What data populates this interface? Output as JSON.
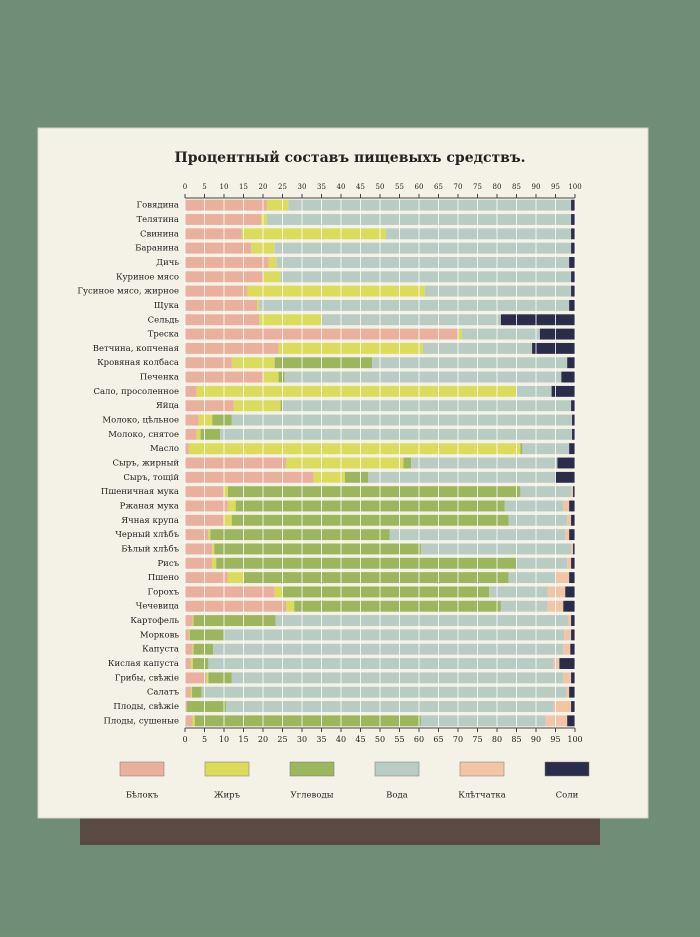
{
  "chart_data": {
    "type": "stacked-barh",
    "title": "Процентный составъ пищевыхъ средствъ.",
    "categories": [
      "Говядина",
      "Телятина",
      "Свинина",
      "Баранина",
      "Дичь",
      "Куриное мясо",
      "Гусиное мясо, жирное",
      "Щука",
      "Сельдь",
      "Треска",
      "Ветчина, копченая",
      "Кровяная колбаса",
      "Печенка",
      "Сало, просоленное",
      "Яйца",
      "Молоко, цѣльное",
      "Молоко, снятое",
      "Масло",
      "Сыръ, жирный",
      "Сыръ, тощій",
      "Пшеничная мука",
      "Ржаная мука",
      "Ячная крупа",
      "Черный хлѣбъ",
      "Бѣлый хлѣбъ",
      "Рисъ",
      "Пшено",
      "Горохъ",
      "Чечевица",
      "Картофель",
      "Морковь",
      "Капуста",
      "Кислая капуста",
      "Грибы, свѣжіе",
      "Салатъ",
      "Плоды, свѣжіе",
      "Плоды, сушеные"
    ],
    "series": [
      {
        "name": "Бѣлокъ",
        "color": "#e9b09e",
        "values": [
          21,
          19.5,
          14.5,
          17,
          21.5,
          20,
          16,
          18.5,
          19,
          70,
          24,
          12,
          20,
          3,
          12.5,
          3.5,
          3,
          1,
          26,
          33,
          10,
          11,
          10,
          6,
          7,
          7,
          11,
          23,
          26,
          2,
          1,
          2,
          1.5,
          5.5,
          1.5,
          0.5,
          2
        ]
      },
      {
        "name": "Жиръ",
        "color": "#dcdc5c",
        "values": [
          5.5,
          1.5,
          37,
          6,
          2,
          4.5,
          45.5,
          0.5,
          16,
          1,
          37,
          11,
          4,
          82,
          12,
          3.5,
          1,
          85,
          30,
          8,
          1,
          2,
          2,
          0.5,
          0.5,
          1,
          4,
          2,
          2,
          0.2,
          0.2,
          0.2,
          0.5,
          0.5,
          0.3,
          0,
          0.5
        ]
      },
      {
        "name": "Углеводы",
        "color": "#9cb65e",
        "values": [
          0,
          0,
          0,
          0,
          0,
          0,
          0,
          0,
          0,
          0,
          0,
          25,
          1.5,
          0,
          0.5,
          5,
          5,
          0.5,
          2,
          6,
          75,
          69,
          71,
          46,
          53,
          77,
          68,
          53,
          53,
          21,
          9,
          5,
          4,
          6,
          2.5,
          10,
          58
        ]
      },
      {
        "name": "Вода",
        "color": "#b9ccc4",
        "values": [
          72.5,
          78,
          47.5,
          76,
          75,
          74.5,
          37.5,
          79.5,
          46,
          20,
          28,
          50,
          71,
          9,
          74,
          87.25,
          90.25,
          12,
          37.5,
          48,
          13,
          15,
          15,
          45,
          38.5,
          13,
          12,
          15,
          12,
          75,
          87,
          89.8,
          88.5,
          85,
          93.5,
          84,
          32
        ]
      },
      {
        "name": "Клѣтчатка",
        "color": "#f1c6a6",
        "values": [
          0,
          0,
          0,
          0,
          0,
          0,
          0,
          0,
          0,
          0,
          0,
          0,
          0,
          0,
          0,
          0,
          0,
          0,
          0,
          0,
          0.5,
          1.5,
          1,
          1,
          0.5,
          1,
          3.5,
          4.5,
          4,
          0.8,
          1.8,
          1.8,
          1.5,
          2,
          0.7,
          4.5,
          5.5
        ]
      },
      {
        "name": "Соли",
        "color": "#2a2d4a",
        "values": [
          1,
          1,
          1,
          1,
          1.5,
          1,
          1,
          1.5,
          19,
          9,
          11,
          2,
          3.5,
          6,
          1,
          0.75,
          0.75,
          1.5,
          4.5,
          5,
          0.5,
          1.5,
          1,
          1.5,
          0.5,
          1,
          1.5,
          2.5,
          3,
          1,
          1,
          1.2,
          4,
          1,
          1.5,
          1,
          2
        ]
      }
    ],
    "xlim": [
      0,
      100
    ],
    "xticks": [
      0,
      5,
      10,
      15,
      20,
      25,
      30,
      35,
      40,
      45,
      50,
      55,
      60,
      65,
      70,
      75,
      80,
      85,
      90,
      95,
      100
    ],
    "grid": true
  }
}
